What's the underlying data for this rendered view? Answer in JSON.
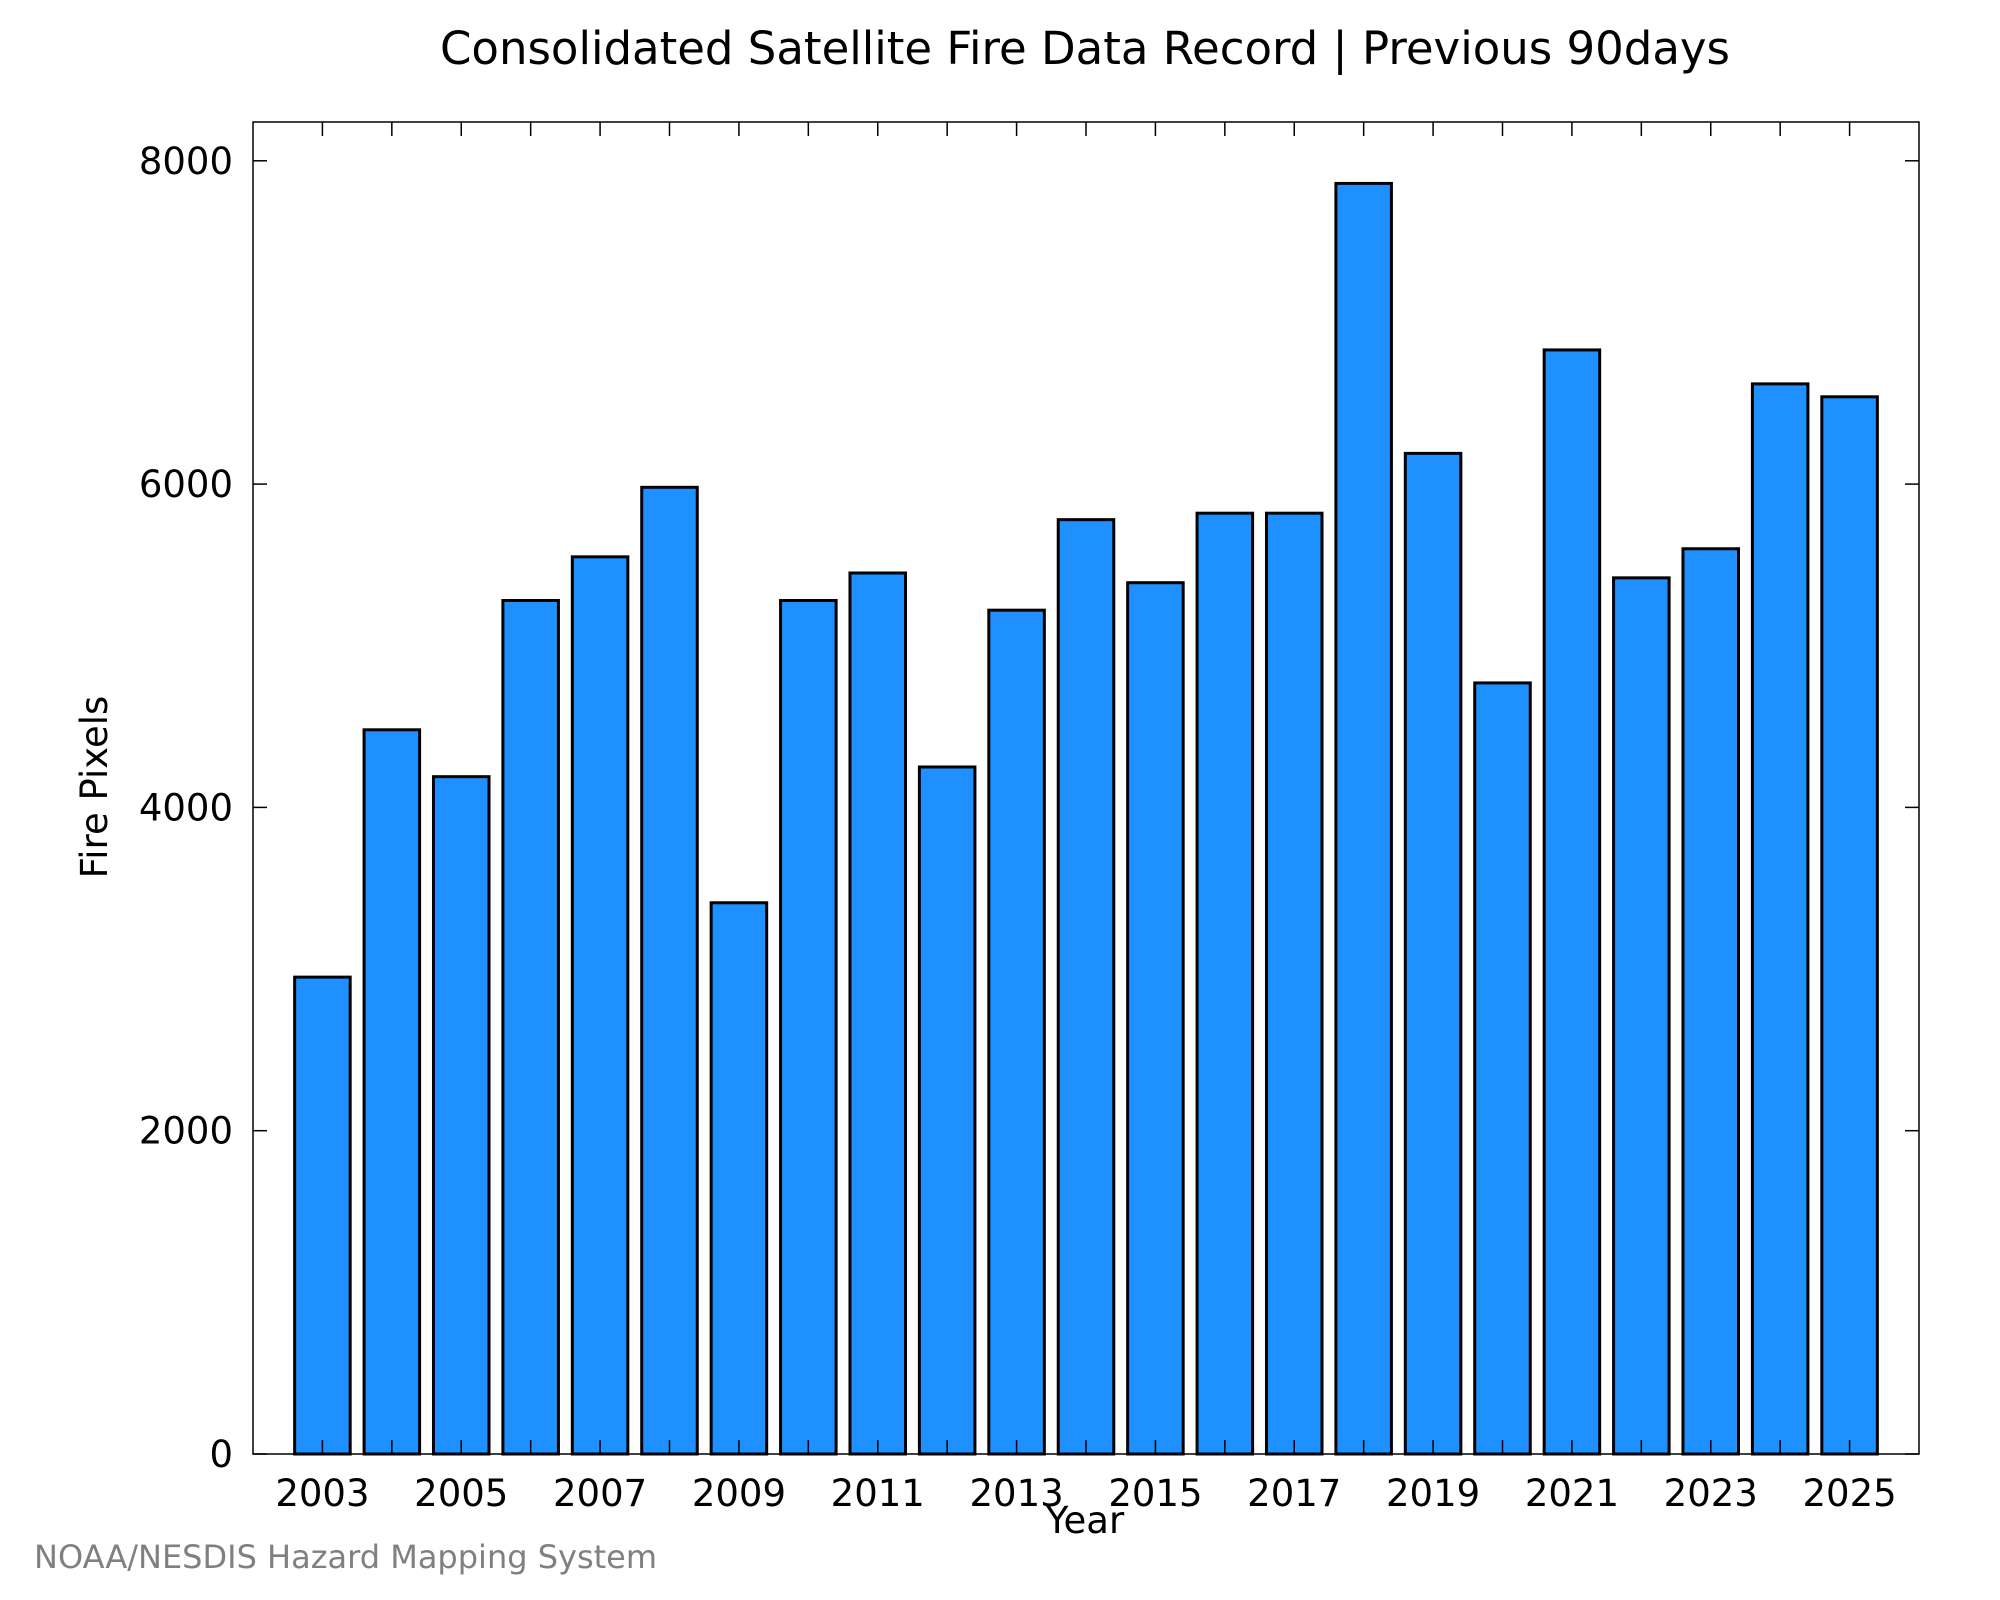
{
  "chart_data": {
    "type": "bar",
    "title": "Consolidated Satellite Fire Data Record | Previous 90days",
    "xlabel": "Year",
    "ylabel": "Fire Pixels",
    "categories": [
      "2003",
      "2004",
      "2005",
      "2006",
      "2007",
      "2008",
      "2009",
      "2010",
      "2011",
      "2012",
      "2013",
      "2014",
      "2015",
      "2016",
      "2017",
      "2018",
      "2019",
      "2020",
      "2021",
      "2022",
      "2023",
      "2024",
      "2025"
    ],
    "values": [
      2950,
      4480,
      4190,
      5280,
      5550,
      5980,
      3410,
      5280,
      5450,
      4250,
      5220,
      5780,
      5390,
      5820,
      5820,
      7860,
      6190,
      4770,
      6830,
      5420,
      5600,
      6620,
      6540
    ],
    "x_tick_labels": [
      "2003",
      "2005",
      "2007",
      "2009",
      "2011",
      "2013",
      "2015",
      "2017",
      "2019",
      "2021",
      "2023",
      "2025"
    ],
    "y_tick_labels": [
      "0",
      "2000",
      "4000",
      "6000",
      "8000"
    ],
    "y_ticks": [
      0,
      2000,
      4000,
      6000,
      8000
    ],
    "ylim": [
      0,
      8240
    ],
    "xlim": [
      2002,
      2026
    ],
    "grid": false,
    "bar_color": "#1e90ff",
    "edge_color": "#000000"
  },
  "footer": {
    "credit": "NOAA/NESDIS Hazard Mapping System"
  }
}
